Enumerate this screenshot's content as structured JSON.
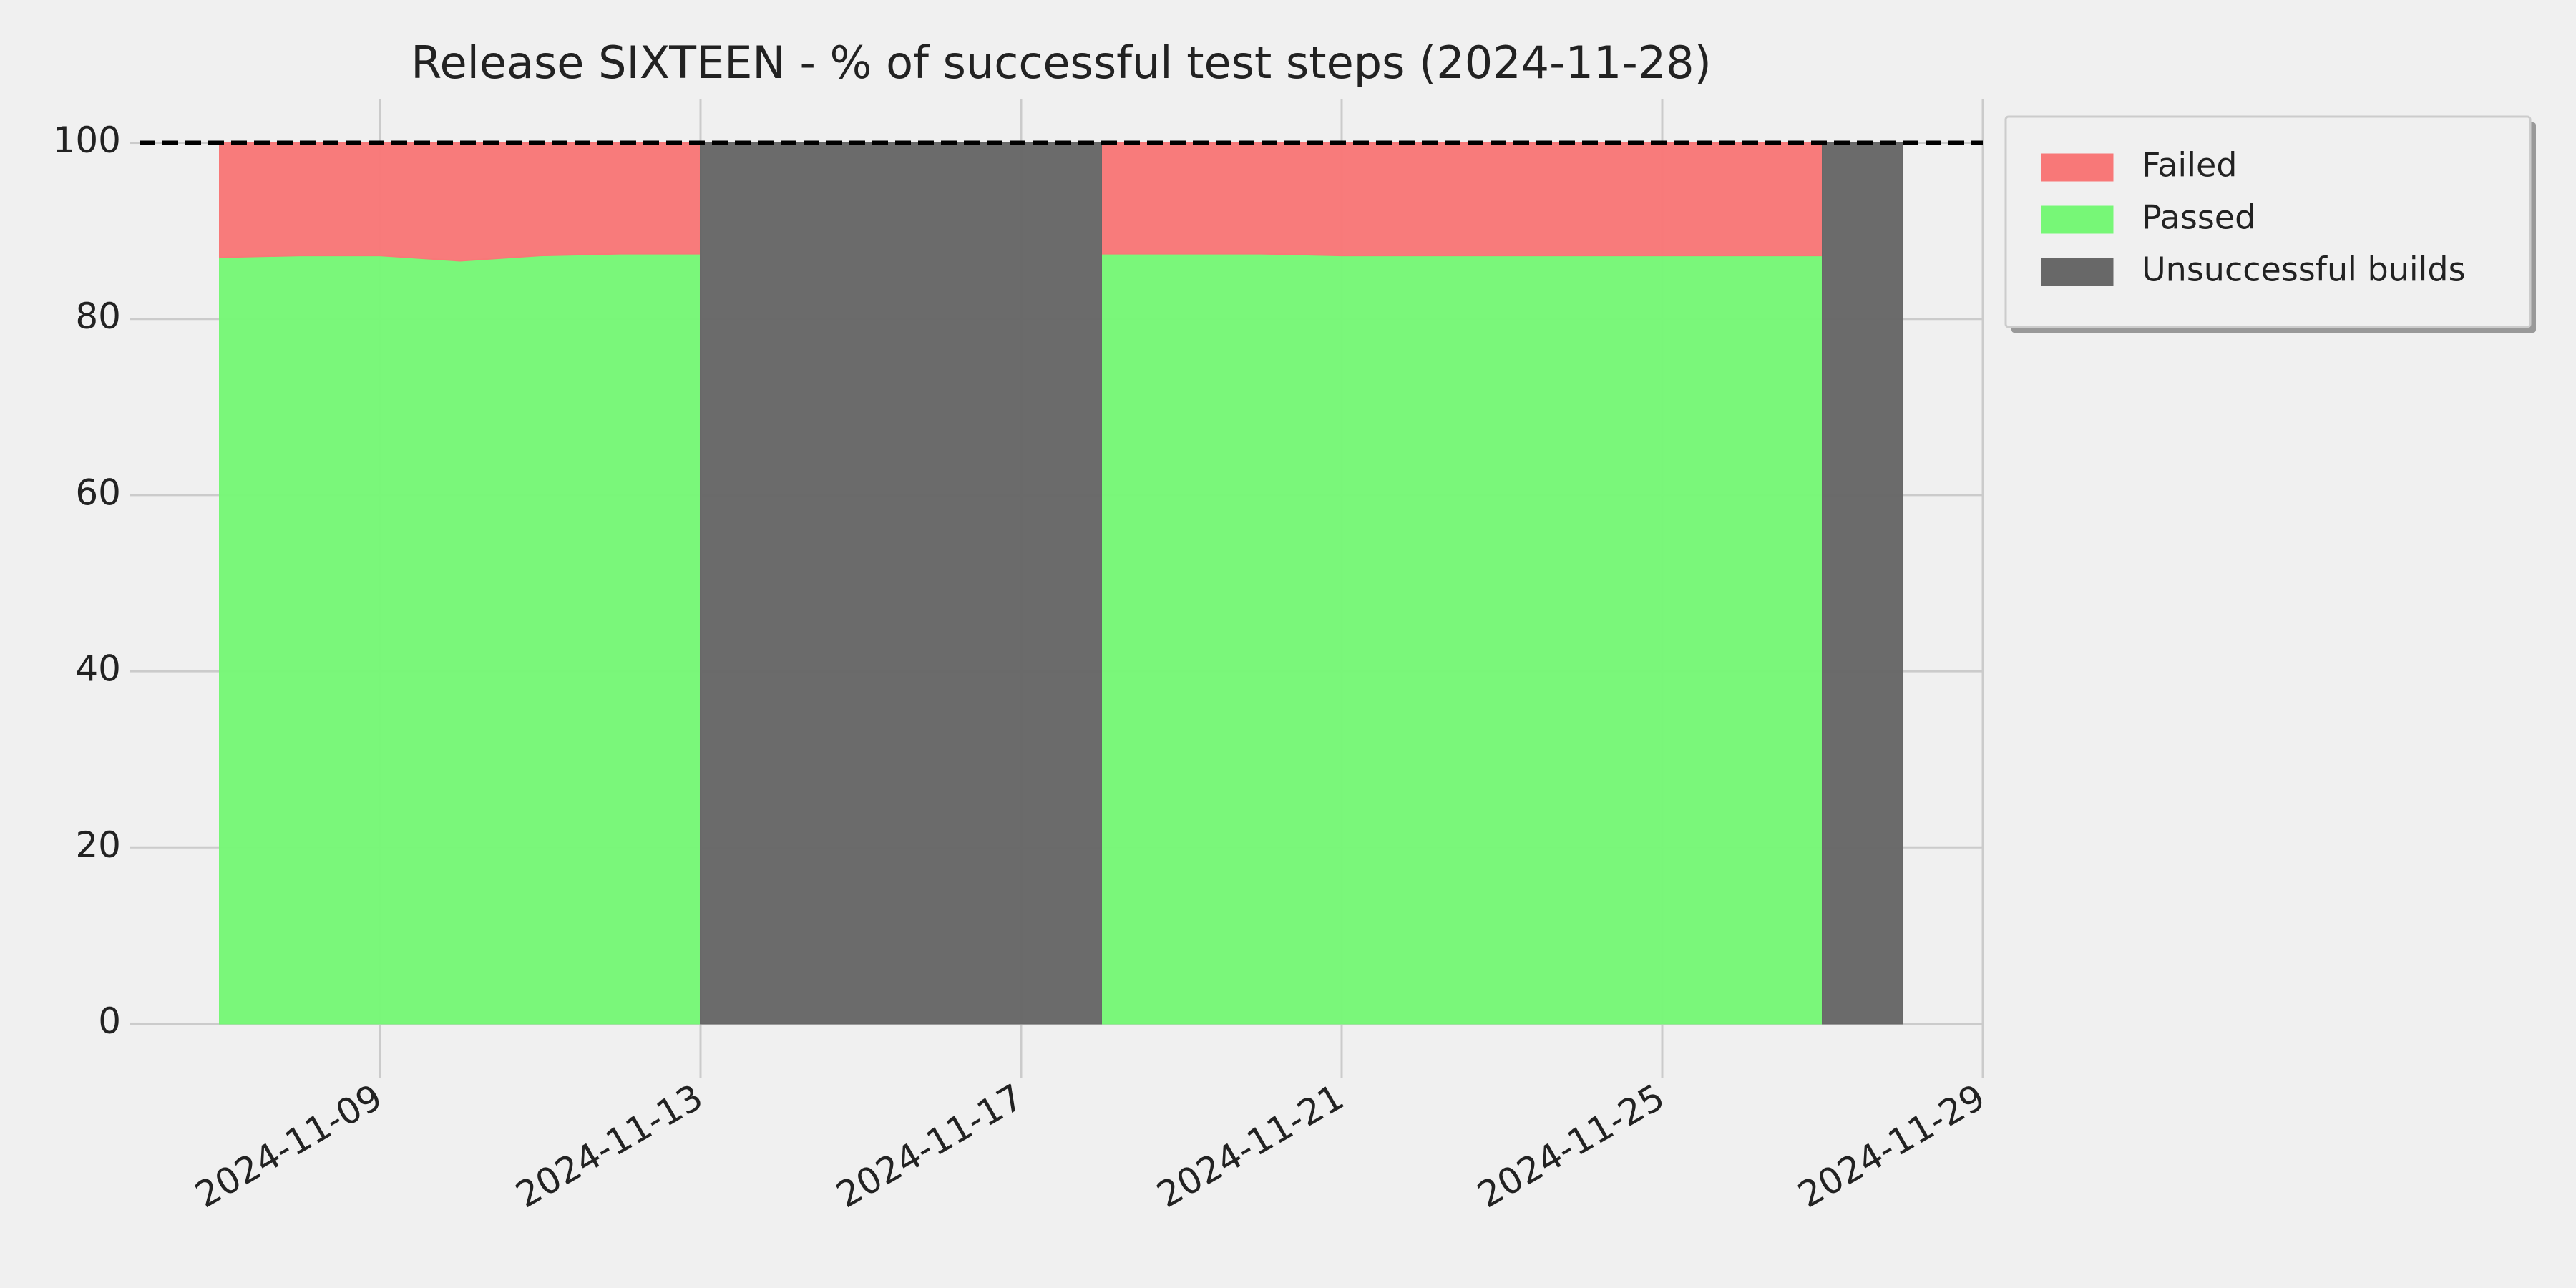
{
  "chart_data": {
    "type": "area",
    "title": "Release SIXTEEN - % of successful test steps (2024-11-28)",
    "x": [
      "2024-11-07",
      "2024-11-08",
      "2024-11-09",
      "2024-11-10",
      "2024-11-11",
      "2024-11-12",
      "2024-11-13",
      "2024-11-14",
      "2024-11-15",
      "2024-11-16",
      "2024-11-17",
      "2024-11-18",
      "2024-11-19",
      "2024-11-20",
      "2024-11-21",
      "2024-11-22",
      "2024-11-23",
      "2024-11-24",
      "2024-11-25",
      "2024-11-26",
      "2024-11-27",
      "2024-11-28"
    ],
    "series": [
      {
        "name": "Passed",
        "color": "#77f777",
        "values": [
          87,
          87.2,
          87.2,
          86.6,
          87.2,
          87.4,
          87.4,
          null,
          null,
          null,
          null,
          87.4,
          87.4,
          87.4,
          87.2,
          87.2,
          87.2,
          87.2,
          87.2,
          87.2,
          87.2,
          null
        ]
      },
      {
        "name": "Failed",
        "color": "#f87878",
        "stacked": true,
        "values": [
          13,
          12.8,
          12.8,
          13.4,
          12.8,
          12.6,
          12.6,
          null,
          null,
          null,
          null,
          12.6,
          12.6,
          12.6,
          12.8,
          12.8,
          12.8,
          12.8,
          12.8,
          12.8,
          12.8,
          null
        ]
      },
      {
        "name": "Unsuccessful builds",
        "color": "#686868",
        "values": [
          null,
          null,
          null,
          null,
          null,
          null,
          100,
          100,
          100,
          100,
          100,
          100,
          null,
          null,
          null,
          null,
          null,
          null,
          null,
          null,
          100,
          100
        ]
      }
    ],
    "legend_order": [
      "Failed",
      "Passed",
      "Unsuccessful builds"
    ],
    "xlim": [
      "2024-11-06",
      "2024-11-29"
    ],
    "xticks": [
      "2024-11-09",
      "2024-11-13",
      "2024-11-17",
      "2024-11-21",
      "2024-11-25",
      "2024-11-29"
    ],
    "ylim": [
      -5,
      105
    ],
    "yticks": [
      0,
      20,
      40,
      60,
      80,
      100
    ],
    "reference_line": 100,
    "grid": true,
    "legend": "outside upper right"
  }
}
